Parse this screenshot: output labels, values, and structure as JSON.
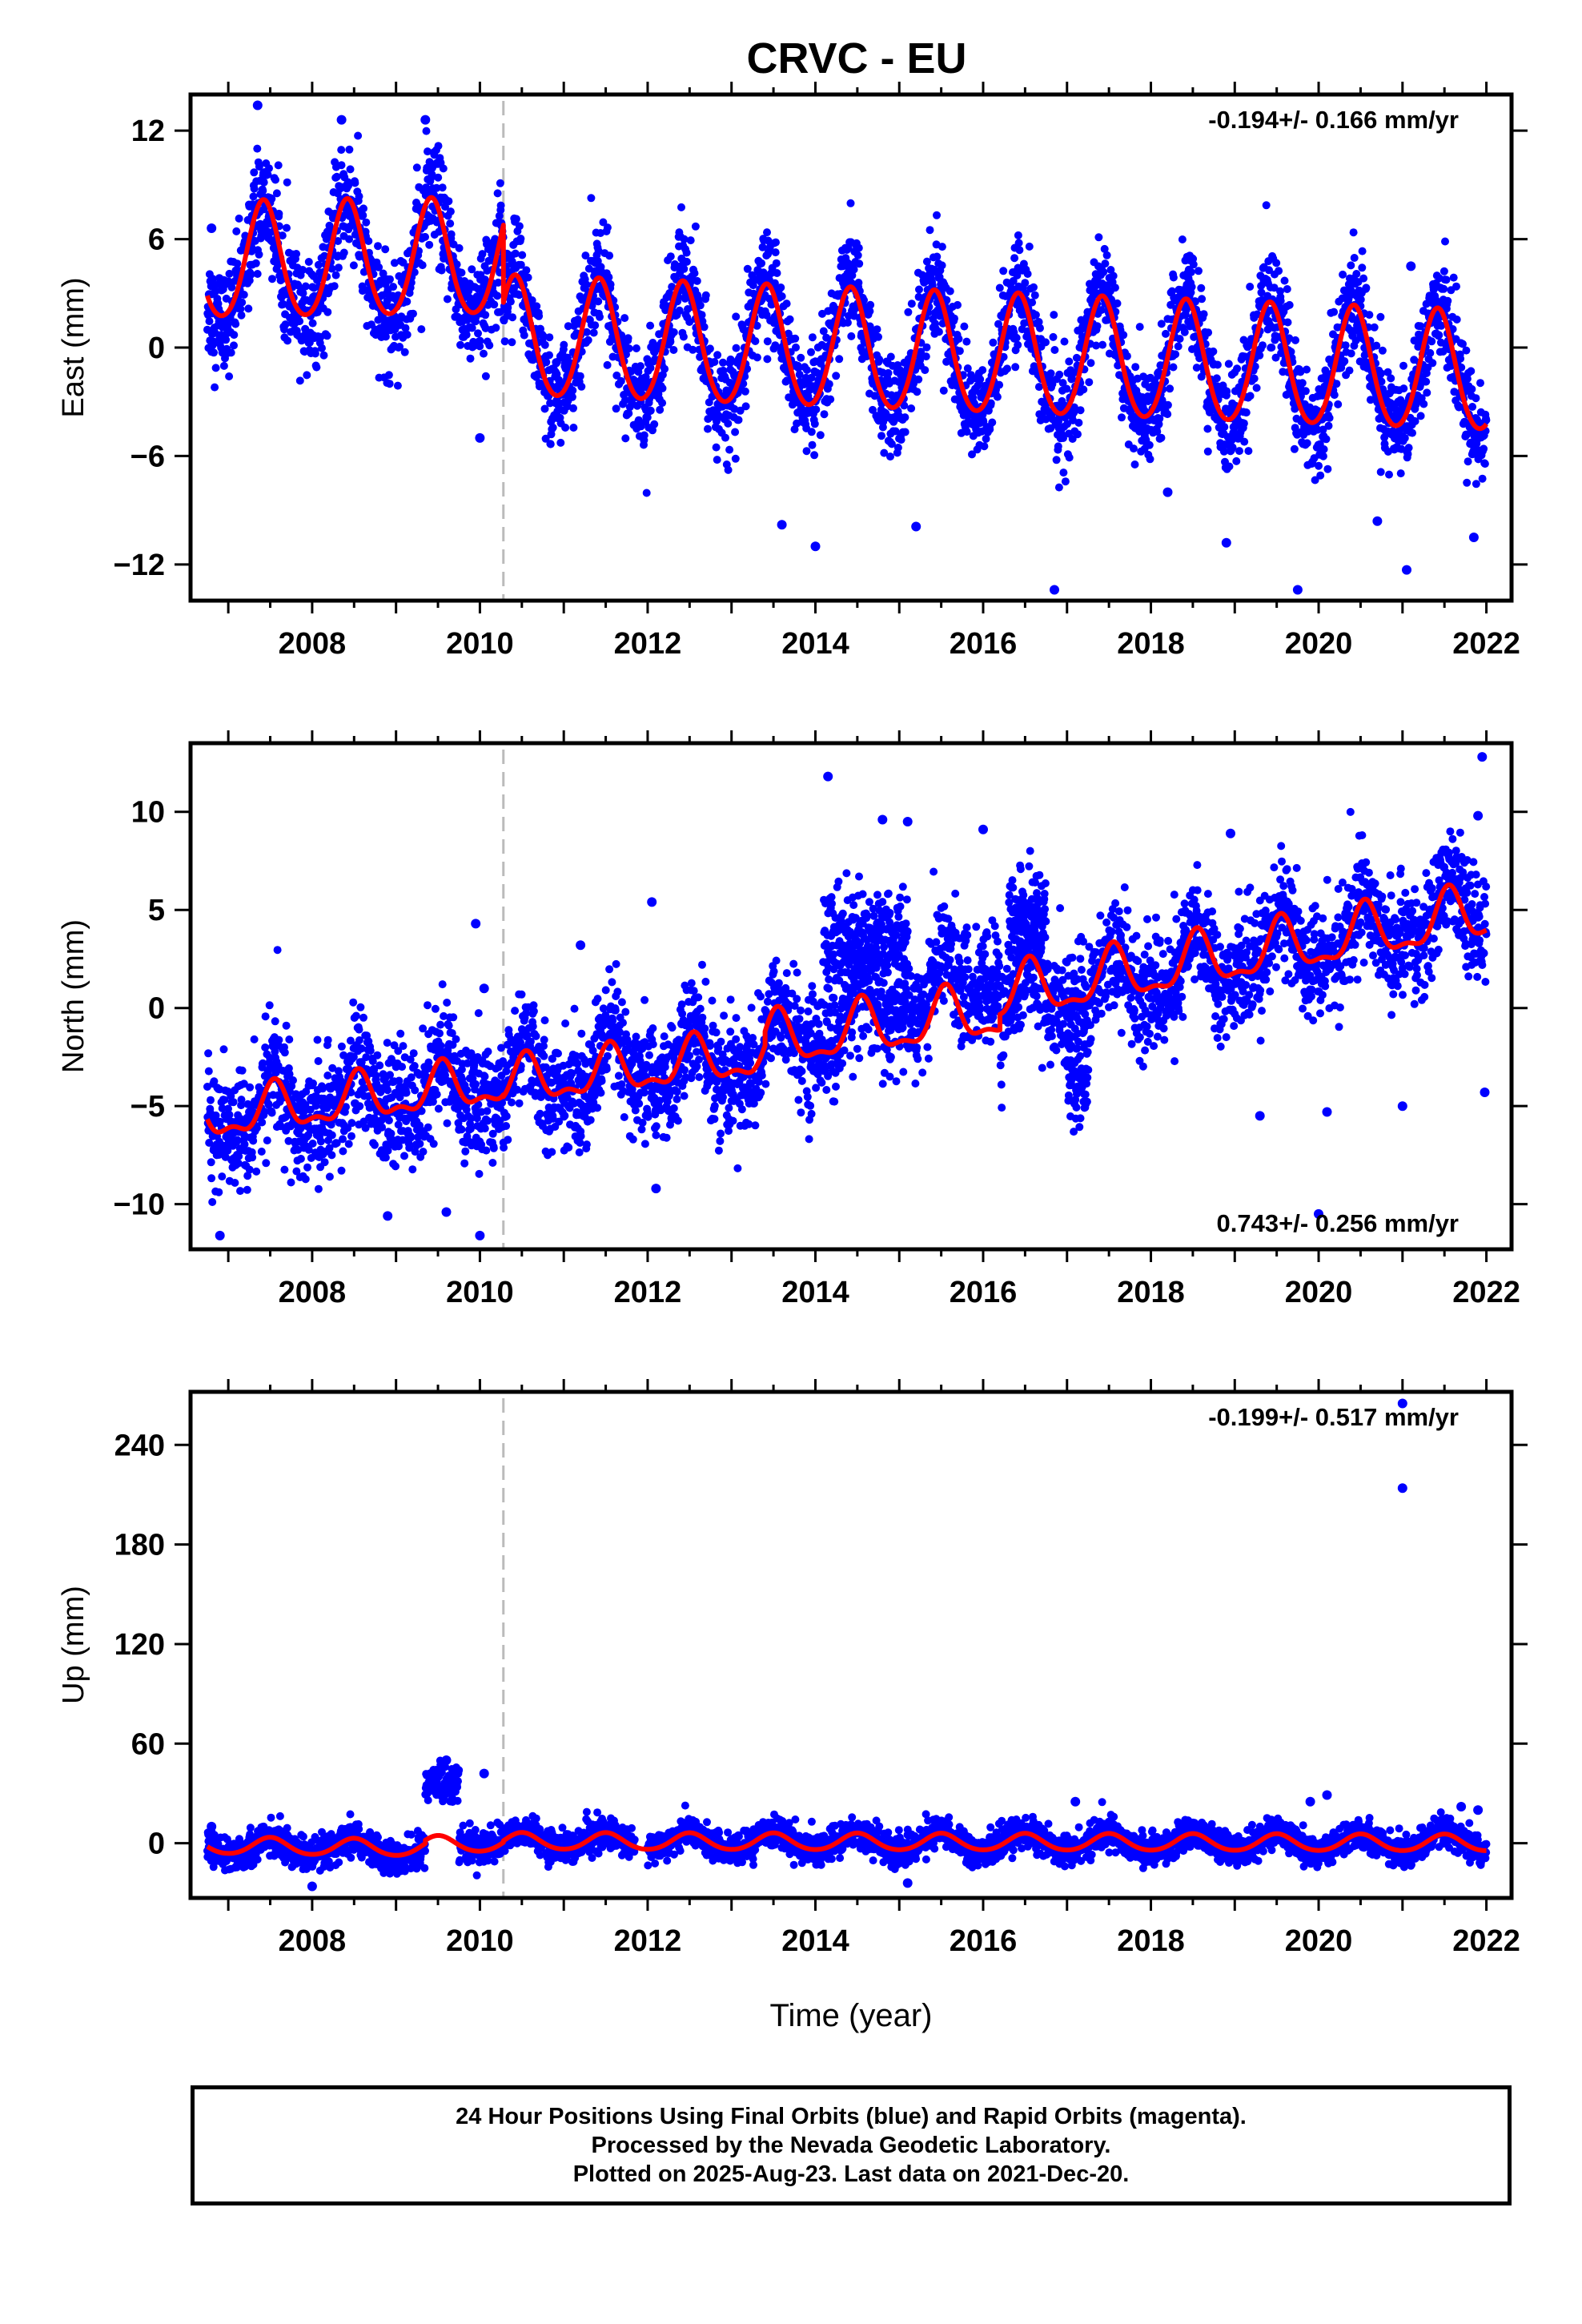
{
  "title": "CRVC - EU",
  "footer": {
    "line1": "24 Hour Positions Using Final Orbits (blue) and Rapid Orbits (magenta).",
    "line2": "Processed by the Nevada Geodetic Laboratory.",
    "line3": "Plotted on 2025-Aug-23. Last data on 2021-Dec-20."
  },
  "colors": {
    "final_orbits": "#0000ff",
    "model": "#ff0000",
    "event_line": "#bbbbbb",
    "frame": "#000000"
  },
  "chart_data": [
    {
      "type": "scatter",
      "panel": "east",
      "ylabel": "East (mm)",
      "xlabel": "",
      "rate_label": "-0.194+/- 0.166 mm/yr",
      "rate_position": "top-right",
      "xlim": [
        2006.55,
        2022.3
      ],
      "ylim": [
        -14,
        14
      ],
      "yticks": [
        -12,
        -6,
        0,
        6,
        12
      ],
      "yticklabels": [
        "−12",
        "−6",
        "0",
        "6",
        "12"
      ],
      "xticks": [
        2008,
        2010,
        2012,
        2014,
        2016,
        2018,
        2020,
        2022
      ],
      "xticklabels": [
        "2008",
        "2010",
        "2012",
        "2014",
        "2016",
        "2018",
        "2020",
        "2022"
      ],
      "event_line_x": 2010.28,
      "series": [
        {
          "kind": "daily_positions",
          "segments": [
            {
              "x": [
                2006.75,
                2010.28
              ],
              "offset": [
                4.3,
                4.8
              ],
              "annual_amp": 3.2,
              "annual_phase": 2007.42,
              "semiannual_amp": 0.4,
              "noise": 1.5
            },
            {
              "x": [
                2010.28,
                2022.0
              ],
              "offset": [
                0.5,
                -1.5
              ],
              "annual_amp": 3.5,
              "annual_phase": 2007.42,
              "semiannual_amp": 0.3,
              "noise": 1.4
            }
          ],
          "outliers": [
            [
              2006.8,
              6.6
            ],
            [
              2007.35,
              13.4
            ],
            [
              2008.35,
              12.6
            ],
            [
              2009.35,
              12.6
            ],
            [
              2009.5,
              10.2
            ],
            [
              2010.0,
              -5.0
            ],
            [
              2013.6,
              -9.8
            ],
            [
              2014.0,
              -11.0
            ],
            [
              2015.2,
              -9.9
            ],
            [
              2016.85,
              -13.4
            ],
            [
              2018.2,
              -8.0
            ],
            [
              2018.9,
              -10.8
            ],
            [
              2019.75,
              -13.4
            ],
            [
              2020.7,
              -9.6
            ],
            [
              2021.05,
              -12.3
            ],
            [
              2021.85,
              -10.5
            ],
            [
              2021.1,
              4.5
            ]
          ]
        },
        {
          "kind": "model",
          "segments": [
            {
              "x": [
                2006.75,
                2010.28
              ],
              "offset": [
                4.6,
                4.8
              ],
              "annual_amp": 3.2,
              "annual_phase": 2007.42,
              "semiannual_amp": 0.35
            },
            {
              "x": [
                2010.28,
                2022.0
              ],
              "offset": [
                0.45,
                -1.5
              ],
              "annual_amp": 3.3,
              "annual_phase": 2007.42,
              "semiannual_amp": 0.3
            }
          ]
        }
      ]
    },
    {
      "type": "scatter",
      "panel": "north",
      "ylabel": "North (mm)",
      "xlabel": "",
      "rate_label": "0.743+/- 0.256 mm/yr",
      "rate_position": "bottom-right",
      "xlim": [
        2006.55,
        2022.3
      ],
      "ylim": [
        -12.3,
        13.5
      ],
      "yticks": [
        -10,
        -5,
        0,
        5,
        10
      ],
      "yticklabels": [
        "−10",
        "−5",
        "0",
        "5",
        "10"
      ],
      "xticks": [
        2008,
        2010,
        2012,
        2014,
        2016,
        2018,
        2020,
        2022
      ],
      "xticklabels": [
        "2008",
        "2010",
        "2012",
        "2014",
        "2016",
        "2018",
        "2020",
        "2022"
      ],
      "event_line_x": 2010.28,
      "series": [
        {
          "kind": "daily_positions",
          "segments": [
            {
              "x": [
                2006.75,
                2010.28
              ],
              "offset": [
                -5.6,
                -3.8
              ],
              "annual_amp": 1.2,
              "annual_phase": 2007.55,
              "semiannual_amp": 0.6,
              "noise": 1.5
            },
            {
              "x": [
                2010.28,
                2013.4
              ],
              "offset": [
                -3.8,
                -2.6
              ],
              "annual_amp": 1.3,
              "annual_phase": 2007.55,
              "semiannual_amp": 0.6,
              "noise": 1.4
            },
            {
              "x": [
                2013.4,
                2016.2
              ],
              "offset": [
                -2.0,
                2.0
              ],
              "annual_amp": 1.3,
              "annual_phase": 2007.55,
              "semiannual_amp": 0.6,
              "noise": 1.5
            },
            {
              "x": [
                2016.2,
                2022.0
              ],
              "offset": [
                0.2,
                5.0
              ],
              "annual_amp": 1.4,
              "annual_phase": 2007.55,
              "semiannual_amp": 0.6,
              "noise": 1.4
            }
          ],
          "extra": [
            {
              "x": [
                2014.1,
                2015.1
              ],
              "value": 3.5,
              "noise": 1.2
            },
            {
              "x": [
                2016.3,
                2016.75
              ],
              "value": 4.5,
              "noise": 1.2
            },
            {
              "x": [
                2017.0,
                2017.25
              ],
              "value": -3.5,
              "noise": 1.3
            }
          ],
          "outliers": [
            [
              2006.9,
              -11.6
            ],
            [
              2008.9,
              -10.6
            ],
            [
              2009.6,
              -10.4
            ],
            [
              2010.0,
              -11.6
            ],
            [
              2009.95,
              4.3
            ],
            [
              2010.05,
              1.0
            ],
            [
              2011.2,
              3.2
            ],
            [
              2012.05,
              5.4
            ],
            [
              2012.1,
              -9.2
            ],
            [
              2014.15,
              11.8
            ],
            [
              2014.8,
              9.6
            ],
            [
              2015.1,
              9.5
            ],
            [
              2016.0,
              9.1
            ],
            [
              2018.95,
              8.9
            ],
            [
              2019.3,
              -5.5
            ],
            [
              2020.0,
              -10.5
            ],
            [
              2020.1,
              -5.3
            ],
            [
              2021.0,
              -5.0
            ],
            [
              2021.9,
              9.8
            ],
            [
              2021.95,
              12.8
            ],
            [
              2021.98,
              -4.3
            ]
          ]
        },
        {
          "kind": "model",
          "segments": [
            {
              "x": [
                2006.75,
                2010.28
              ],
              "offset": [
                -5.6,
                -3.8
              ],
              "annual_amp": 1.1,
              "annual_phase": 2007.55,
              "semiannual_amp": 0.5
            },
            {
              "x": [
                2010.28,
                2013.4
              ],
              "offset": [
                -3.9,
                -2.4
              ],
              "annual_amp": 1.1,
              "annual_phase": 2007.55,
              "semiannual_amp": 0.5
            },
            {
              "x": [
                2013.4,
                2016.2
              ],
              "offset": [
                -1.8,
                -0.2
              ],
              "annual_amp": 1.3,
              "annual_phase": 2007.55,
              "semiannual_amp": 0.5
            },
            {
              "x": [
                2016.2,
                2022.0
              ],
              "offset": [
                0.6,
                4.8
              ],
              "annual_amp": 1.3,
              "annual_phase": 2007.55,
              "semiannual_amp": 0.5
            }
          ]
        }
      ]
    },
    {
      "type": "scatter",
      "panel": "up",
      "ylabel": "Up (mm)",
      "xlabel": "Time (year)",
      "rate_label": "-0.199+/- 0.517 mm/yr",
      "rate_position": "top-right",
      "xlim": [
        2006.55,
        2022.3
      ],
      "ylim": [
        -33,
        272
      ],
      "yticks": [
        0,
        60,
        120,
        180,
        240
      ],
      "yticklabels": [
        "0",
        "60",
        "120",
        "180",
        "240"
      ],
      "xticks": [
        2008,
        2010,
        2012,
        2014,
        2016,
        2018,
        2020,
        2022
      ],
      "xticklabels": [
        "2008",
        "2010",
        "2012",
        "2014",
        "2016",
        "2018",
        "2020",
        "2022"
      ],
      "event_line_x": 2010.28,
      "series": [
        {
          "kind": "daily_positions",
          "segments": [
            {
              "x": [
                2006.75,
                2009.35
              ],
              "offset": [
                -2.0,
                -5.0
              ],
              "annual_amp": 5.5,
              "annual_phase": 2007.5,
              "semiannual_amp": 0.5,
              "noise": 5.0
            },
            {
              "x": [
                2009.75,
                2010.28
              ],
              "offset": [
                0.0,
                0.0
              ],
              "annual_amp": 3.0,
              "annual_phase": 2007.5,
              "semiannual_amp": 0.5,
              "noise": 5.0
            },
            {
              "x": [
                2010.28,
                2011.85
              ],
              "offset": [
                2.0,
                1.0
              ],
              "annual_amp": 5.0,
              "annual_phase": 2007.5,
              "semiannual_amp": 0.5,
              "noise": 4.5
            },
            {
              "x": [
                2012.0,
                2022.0
              ],
              "offset": [
                1.0,
                0.0
              ],
              "annual_amp": 5.5,
              "annual_phase": 2007.5,
              "semiannual_amp": 0.5,
              "noise": 4.5
            }
          ],
          "extra": [
            {
              "x": [
                2009.35,
                2009.75
              ],
              "value": 36.0,
              "noise": 5.5
            }
          ],
          "outliers": [
            [
              2009.6,
              50.0
            ],
            [
              2010.05,
              42.0
            ],
            [
              2008.0,
              -26.0
            ],
            [
              2015.1,
              -24.0
            ],
            [
              2017.1,
              25.0
            ],
            [
              2019.9,
              25.0
            ],
            [
              2020.1,
              29.0
            ],
            [
              2021.0,
              265.0
            ],
            [
              2021.0,
              214.0
            ],
            [
              2021.7,
              22.0
            ],
            [
              2021.9,
              20.0
            ],
            [
              2006.8,
              10.0
            ]
          ]
        },
        {
          "kind": "model",
          "segments": [
            {
              "x": [
                2006.75,
                2009.35
              ],
              "offset": [
                -1.5,
                -3.0
              ],
              "annual_amp": 5.0,
              "annual_phase": 2007.5,
              "semiannual_amp": 0.5
            },
            {
              "x": [
                2009.35,
                2010.28
              ],
              "offset": [
                -1.0,
                0.0
              ],
              "annual_amp": 5.0,
              "annual_phase": 2007.5,
              "semiannual_amp": 0.5
            },
            {
              "x": [
                2010.28,
                2022.0
              ],
              "offset": [
                1.0,
                0.0
              ],
              "annual_amp": 5.0,
              "annual_phase": 2007.5,
              "semiannual_amp": 0.5
            }
          ]
        }
      ]
    }
  ]
}
